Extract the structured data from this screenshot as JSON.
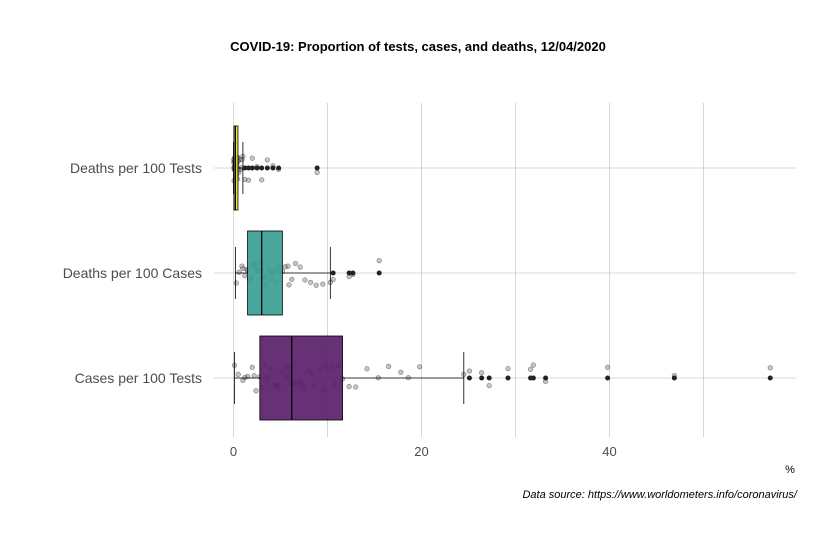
{
  "chart_data": {
    "type": "boxplot",
    "title": "COVID-19: Proportion of tests, cases, and deaths, 12/04/2020",
    "xlabel": "%",
    "ylabel": "",
    "caption": "Data source: https://www.worldometers.info/coronavirus/",
    "xlim": [
      -1,
      59
    ],
    "xticks": [
      0,
      20,
      40
    ],
    "grid": true,
    "categories": [
      "Deaths per 100 Tests",
      "Deaths per 100 Cases",
      "Cases per 100 Tests"
    ],
    "colors": [
      "#f2df3a",
      "#3b9f96",
      "#5a1f6a"
    ],
    "boxes": [
      {
        "name": "Deaths per 100 Tests",
        "whisker_low": 0.0,
        "q1": 0.05,
        "median": 0.2,
        "q3": 0.45,
        "whisker_high": 1.0,
        "outliers": [
          1.2,
          1.6,
          2.0,
          2.5,
          3.0,
          3.6,
          4.2,
          4.8,
          8.9
        ]
      },
      {
        "name": "Deaths per 100 Cases",
        "whisker_low": 0.2,
        "q1": 1.5,
        "median": 3.0,
        "q3": 5.2,
        "whisker_high": 10.3,
        "outliers": [
          10.6,
          12.3,
          12.7,
          15.5
        ]
      },
      {
        "name": "Cases per 100 Tests",
        "whisker_low": 0.1,
        "q1": 2.8,
        "median": 6.2,
        "q3": 11.6,
        "whisker_high": 24.5,
        "outliers": [
          25.1,
          26.4,
          27.2,
          29.2,
          31.6,
          31.9,
          33.2,
          39.8,
          46.9,
          57.1
        ]
      }
    ],
    "points": [
      [
        0.05,
        0.08,
        0.1,
        0.12,
        0.15,
        0.18,
        0.2,
        0.22,
        0.25,
        0.28,
        0.3,
        0.32,
        0.35,
        0.4,
        0.45,
        0.5,
        0.55,
        0.6,
        0.7,
        0.8,
        0.9,
        1.0,
        1.2,
        1.6,
        2.0,
        2.5,
        3.0,
        3.6,
        4.2,
        4.8,
        8.9,
        0.02,
        0.03,
        0.06,
        0.09,
        0.11,
        0.14,
        0.16,
        0.19,
        0.23,
        0.27,
        0.33,
        0.38,
        0.42,
        0.48
      ],
      [
        0.3,
        0.6,
        0.9,
        1.2,
        1.5,
        1.7,
        1.9,
        2.1,
        2.3,
        2.5,
        2.7,
        2.9,
        3.0,
        3.1,
        3.3,
        3.5,
        3.7,
        3.9,
        4.1,
        4.3,
        4.6,
        4.9,
        5.2,
        5.5,
        5.8,
        6.2,
        6.6,
        7.1,
        7.6,
        8.2,
        8.8,
        9.5,
        10.3,
        10.6,
        12.3,
        12.7,
        15.5,
        1.0,
        1.4,
        2.0,
        2.6,
        3.4,
        4.0,
        4.8,
        5.9
      ],
      [
        0.1,
        0.5,
        1.0,
        1.5,
        2.0,
        2.4,
        2.8,
        3.1,
        3.4,
        3.7,
        4.0,
        4.4,
        4.8,
        5.2,
        5.6,
        6.0,
        6.2,
        6.5,
        7.0,
        7.5,
        8.0,
        8.6,
        9.2,
        9.8,
        10.5,
        11.2,
        11.6,
        12.3,
        13.0,
        14.2,
        15.4,
        16.5,
        17.8,
        18.6,
        19.8,
        24.5,
        25.1,
        26.4,
        27.2,
        29.2,
        31.6,
        31.9,
        33.2,
        39.8,
        46.9,
        57.1,
        1.2,
        2.2,
        3.3,
        4.6,
        5.8,
        7.2,
        8.4,
        9.6,
        10.8
      ]
    ]
  }
}
